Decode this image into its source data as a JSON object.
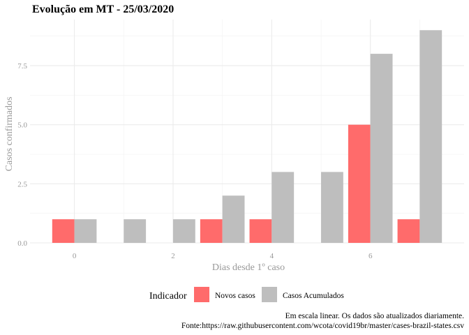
{
  "chart_data": {
    "type": "bar",
    "title": "Evolução em MT  -  25/03/2020",
    "xlabel": "Dias desde 1º caso",
    "ylabel": "Casos confirmados",
    "x": [
      0,
      1,
      2,
      3,
      4,
      5,
      6,
      7
    ],
    "xticks": [
      "0",
      "2",
      "4",
      "6"
    ],
    "xtick_values": [
      0,
      2,
      4,
      6
    ],
    "yticks": [
      "0.0",
      "2.5",
      "5.0",
      "7.5"
    ],
    "ytick_values": [
      0,
      2.5,
      5,
      7.5
    ],
    "xlim": [
      -0.9,
      7.9
    ],
    "ylim": [
      0,
      9.45
    ],
    "grid": true,
    "legend_position": "bottom",
    "legend_title": "Indicador",
    "series": [
      {
        "name": "Novos casos",
        "color": "#FF6B6B",
        "values": [
          1,
          0,
          0,
          1,
          1,
          0,
          5,
          1
        ]
      },
      {
        "name": "Casos Acumulados",
        "color": "#BEBEBE",
        "values": [
          1,
          1,
          1,
          2,
          3,
          3,
          8,
          9
        ]
      }
    ],
    "caption_line1": "Em escala linear. Os dados são atualizados diariamente.",
    "caption_line2": "Fonte:https://raw.githubusercontent.com/wcota/covid19br/master/cases-brazil-states.csv"
  }
}
